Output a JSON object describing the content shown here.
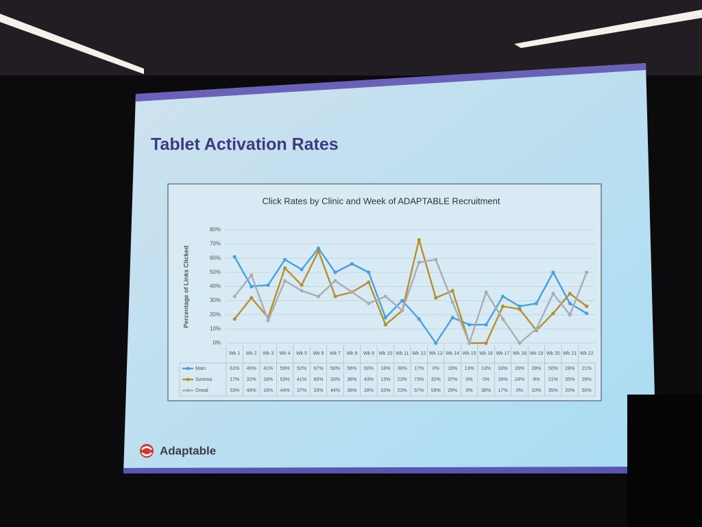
{
  "slide_title": "Tablet Activation Rates",
  "logo": "Adaptable",
  "chart_data": {
    "type": "line",
    "title": "Click Rates by Clinic and Week of ADAPTABLE Recruitment",
    "y_label": "Percentage of Links Clicked",
    "categories": [
      "Wk 1",
      "Wk 2",
      "Wk 3",
      "Wk 4",
      "Wk 5",
      "Wk 6",
      "Wk 7",
      "Wk 8",
      "Wk 9",
      "Wk 10",
      "Wk 11",
      "Wk 12",
      "Wk 13",
      "Wk 14",
      "Wk 15",
      "Wk 16",
      "Wk 17",
      "Wk 18",
      "Wk 19",
      "Wk 20",
      "Wk 21",
      "Wk 22"
    ],
    "ylim": [
      0,
      80
    ],
    "yticks": [
      {
        "value": 0,
        "label": "0%"
      },
      {
        "value": 10,
        "label": "10%"
      },
      {
        "value": 20,
        "label": "20%"
      },
      {
        "value": 30,
        "label": "30%"
      },
      {
        "value": 40,
        "label": "40%"
      },
      {
        "value": 50,
        "label": "50%"
      },
      {
        "value": 60,
        "label": "60%"
      },
      {
        "value": 70,
        "label": "70%"
      },
      {
        "value": 80,
        "label": "80%"
      }
    ],
    "grid": true,
    "series": [
      {
        "name": "Main",
        "color": "#4a9fe0",
        "values": [
          61,
          40,
          41,
          59,
          52,
          67,
          50,
          56,
          50,
          18,
          30,
          17,
          0,
          18,
          13,
          13,
          33,
          26,
          28,
          50,
          28,
          21
        ],
        "value_labels": [
          "61%",
          "40%",
          "41%",
          "59%",
          "52%",
          "67%",
          "50%",
          "56%",
          "50%",
          "18%",
          "30%",
          "17%",
          "0%",
          "18%",
          "13%",
          "13%",
          "33%",
          "26%",
          "28%",
          "50%",
          "28%",
          "21%"
        ]
      },
      {
        "name": "Summa",
        "color": "#b58f2c",
        "values": [
          17,
          32,
          18,
          53,
          41,
          65,
          33,
          36,
          43,
          13,
          23,
          73,
          32,
          37,
          0,
          0,
          26,
          24,
          9,
          21,
          35,
          26
        ],
        "value_labels": [
          "17%",
          "32%",
          "18%",
          "53%",
          "41%",
          "65%",
          "33%",
          "36%",
          "43%",
          "13%",
          "23%",
          "73%",
          "32%",
          "37%",
          "0%",
          "0%",
          "26%",
          "24%",
          "9%",
          "21%",
          "35%",
          "26%"
        ]
      },
      {
        "name": "Oneal",
        "color": "#a8adb4",
        "values": [
          33,
          48,
          16,
          44,
          37,
          33,
          44,
          36,
          28,
          33,
          23,
          57,
          59,
          29,
          0,
          36,
          17,
          0,
          10,
          35,
          20,
          50
        ],
        "value_labels": [
          "33%",
          "48%",
          "16%",
          "44%",
          "37%",
          "33%",
          "44%",
          "36%",
          "28%",
          "33%",
          "23%",
          "57%",
          "59%",
          "29%",
          "0%",
          "36%",
          "17%",
          "0%",
          "10%",
          "35%",
          "20%",
          "50%"
        ]
      }
    ]
  }
}
